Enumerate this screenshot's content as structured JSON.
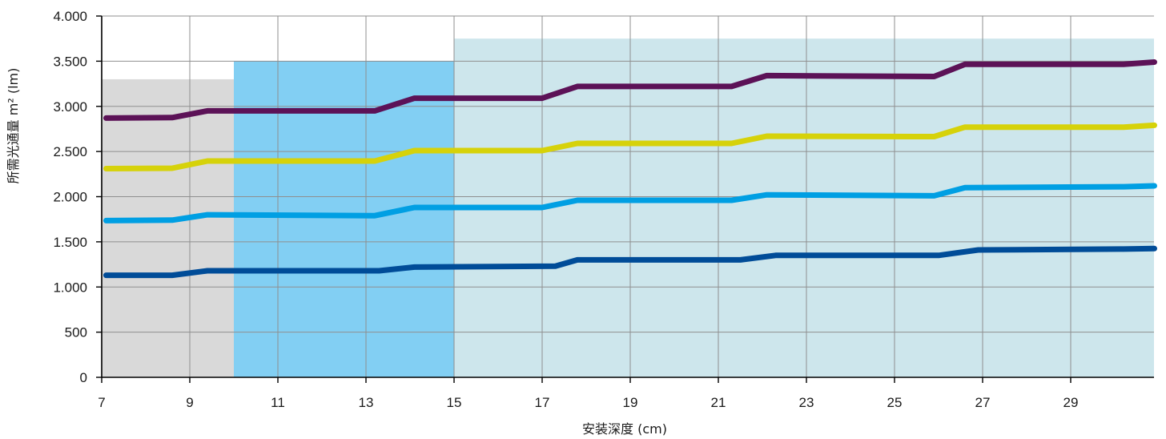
{
  "chart_data": {
    "type": "line",
    "title": "",
    "xlabel": "安装深度 (cm)",
    "ylabel": "所需光通量 m² (lm)",
    "xlim": [
      7,
      31
    ],
    "ylim": [
      0,
      4000
    ],
    "x_ticks": [
      7,
      9,
      11,
      13,
      15,
      17,
      19,
      21,
      23,
      25,
      27,
      29
    ],
    "x_tick_labels": [
      "7",
      "9",
      "11",
      "13",
      "15",
      "17",
      "19",
      "21",
      "23",
      "25",
      "27",
      "29"
    ],
    "y_ticks": [
      0,
      500,
      1000,
      1500,
      2000,
      2500,
      3000,
      3500,
      4000
    ],
    "y_tick_labels": [
      "0",
      "500",
      "1.000",
      "1.500",
      "2.000",
      "2.500",
      "3.000",
      "3.500",
      "4.000"
    ],
    "grid": true,
    "legend": "none",
    "background_regions": [
      {
        "x_range": [
          7,
          12
        ],
        "y_max": 3300,
        "color": "#d9d9d9"
      },
      {
        "x_range": [
          10,
          18
        ],
        "y_max": 3500,
        "color": "#82cff3"
      },
      {
        "x_range": [
          15,
          31
        ],
        "y_max": 3750,
        "color": "#cde6ec"
      }
    ],
    "series": [
      {
        "color": "#5c1257",
        "x": [
          7.1,
          8.6,
          9.4,
          13.2,
          14.1,
          17.0,
          17.8,
          21.3,
          22.1,
          25.9,
          26.6,
          30.2,
          30.9
        ],
        "values": [
          2870,
          2875,
          2950,
          2950,
          3090,
          3090,
          3220,
          3220,
          3340,
          3330,
          3465,
          3465,
          3490
        ]
      },
      {
        "color": "#d6d20a",
        "x": [
          7.1,
          8.6,
          9.4,
          13.2,
          14.1,
          17.0,
          17.8,
          21.3,
          22.1,
          25.9,
          26.6,
          30.2,
          30.9
        ],
        "values": [
          2310,
          2315,
          2395,
          2395,
          2510,
          2510,
          2590,
          2590,
          2670,
          2665,
          2770,
          2770,
          2790
        ]
      },
      {
        "color": "#009fe3",
        "x": [
          7.1,
          8.6,
          9.4,
          13.2,
          14.1,
          17.0,
          17.8,
          21.3,
          22.1,
          25.9,
          26.6,
          30.2,
          30.9
        ],
        "values": [
          1735,
          1740,
          1800,
          1790,
          1880,
          1880,
          1960,
          1960,
          2020,
          2010,
          2100,
          2110,
          2120
        ]
      },
      {
        "color": "#004c98",
        "x": [
          7.1,
          8.6,
          9.4,
          13.3,
          14.1,
          17.3,
          17.8,
          21.5,
          22.3,
          26.0,
          26.9,
          30.2,
          30.9
        ],
        "values": [
          1130,
          1130,
          1180,
          1180,
          1220,
          1230,
          1300,
          1300,
          1350,
          1350,
          1410,
          1420,
          1425
        ]
      }
    ]
  }
}
